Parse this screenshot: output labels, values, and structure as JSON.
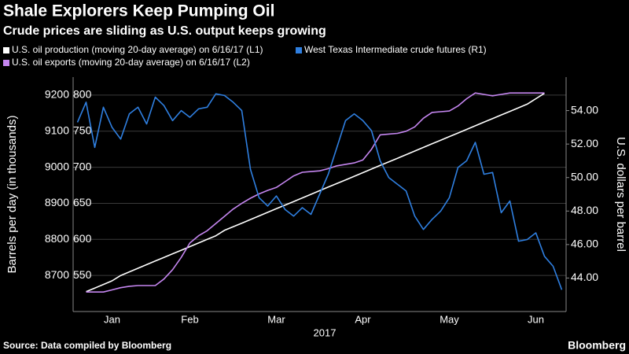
{
  "chart_data": {
    "type": "line",
    "title": "Shale Explorers Keep Pumping Oil",
    "subtitle": "Crude prices are sliding as U.S. output keeps growing",
    "source": "Source: Data compiled by Bloomberg",
    "brand": "Bloomberg",
    "x_label": "2017",
    "ylabel": "Barrels per day (in thousands)",
    "y2label": "U.S. dollars per barrel",
    "categories": [
      null,
      null,
      null,
      null,
      "Jan",
      null,
      null,
      null,
      null,
      null,
      null,
      null,
      null,
      "Feb",
      null,
      null,
      null,
      null,
      null,
      null,
      null,
      null,
      null,
      "Mar",
      null,
      null,
      null,
      null,
      null,
      null,
      null,
      null,
      null,
      "Apr",
      null,
      null,
      null,
      null,
      null,
      null,
      null,
      null,
      null,
      "May",
      null,
      null,
      null,
      null,
      null,
      null,
      null,
      null,
      null,
      "Jun",
      null,
      null,
      null
    ],
    "ylim": [
      8600,
      9250
    ],
    "yticks": [
      8700,
      8800,
      8900,
      9000,
      9100,
      9200
    ],
    "y3lim": [
      500,
      825
    ],
    "y3ticks": [
      550,
      600,
      650,
      700,
      750,
      800
    ],
    "y2lim": [
      42,
      56
    ],
    "y2ticks": [
      {
        "value": 44,
        "label": "44.00"
      },
      {
        "value": 46,
        "label": "46.00"
      },
      {
        "value": 48,
        "label": "48.00"
      },
      {
        "value": 50,
        "label": "50.00"
      },
      {
        "value": 52,
        "label": "52.00"
      },
      {
        "value": 54,
        "label": "54.00"
      }
    ],
    "grid": true,
    "series": [
      {
        "name": "U.S. oil production (moving 20-day average) on 6/16/17 (L1)",
        "color": "#ffffff",
        "axis": "y",
        "values": [
          null,
          8655,
          8665,
          8675,
          8685,
          8700,
          8710,
          8720,
          8730,
          8740,
          8750,
          8760,
          8770,
          8780,
          8790,
          8800,
          8810,
          8825,
          8835,
          8845,
          8855,
          8865,
          8875,
          8885,
          8895,
          8905,
          8915,
          8925,
          8935,
          8945,
          8955,
          8965,
          8975,
          8985,
          8995,
          9005,
          9015,
          9025,
          9035,
          9045,
          9055,
          9065,
          9075,
          9085,
          9095,
          9105,
          9115,
          9125,
          9135,
          9145,
          9155,
          9165,
          9175,
          9190,
          9205,
          null,
          null
        ]
      },
      {
        "name": "U.S. oil exports (moving 20-day average) on 6/16/17 (L2)",
        "color": "#c586f0",
        "axis": "y3",
        "values": [
          null,
          527,
          527,
          527,
          530,
          533,
          535,
          536,
          536,
          536,
          545,
          558,
          575,
          595,
          605,
          612,
          622,
          632,
          642,
          650,
          657,
          663,
          668,
          672,
          680,
          688,
          693,
          694,
          695,
          698,
          702,
          704,
          706,
          710,
          725,
          745,
          746,
          747,
          750,
          756,
          768,
          776,
          777,
          778,
          785,
          795,
          803,
          801,
          799,
          801,
          803,
          803,
          803,
          803,
          803,
          null,
          null
        ]
      },
      {
        "name": "West Texas Intermediate crude futures (R1)",
        "color": "#2f7fe0",
        "axis": "y2",
        "values": [
          53.3,
          54.5,
          51.8,
          54.2,
          53.0,
          52.3,
          53.8,
          54.2,
          53.2,
          54.8,
          54.3,
          53.4,
          54.0,
          53.6,
          54.1,
          54.2,
          55.0,
          54.9,
          54.5,
          54.0,
          50.5,
          48.8,
          48.3,
          48.9,
          48.1,
          47.7,
          48.2,
          47.8,
          49.0,
          50.2,
          51.8,
          53.4,
          53.8,
          53.4,
          52.8,
          51.0,
          50.0,
          49.6,
          49.2,
          47.7,
          46.9,
          47.5,
          48.0,
          48.8,
          50.6,
          51.0,
          52.1,
          50.2,
          50.3,
          47.9,
          48.6,
          46.2,
          46.3,
          46.7,
          45.3,
          44.7,
          43.3
        ]
      }
    ]
  }
}
